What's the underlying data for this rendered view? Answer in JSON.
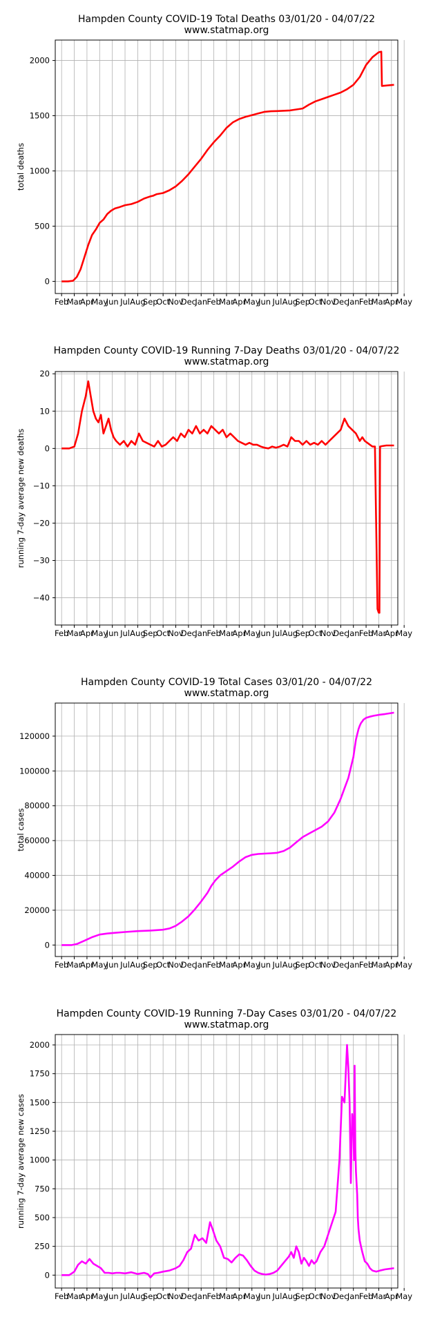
{
  "chart_data": [
    {
      "type": "line",
      "title": "Hampden County COVID-19 Total Deaths 03/01/20 - 04/07/22",
      "subtitle": "www.statmap.org",
      "xlabel": "",
      "ylabel": "total deaths",
      "color": "#ff0000",
      "grid": true,
      "x_tick_labels": [
        "Feb",
        "Mar",
        "Apr",
        "May",
        "Jun",
        "Jul",
        "Aug",
        "Sep",
        "Oct",
        "Nov",
        "Dec",
        "Jan",
        "Feb",
        "Mar",
        "Apr",
        "May",
        "Jun",
        "Jul",
        "Aug",
        "Sep",
        "Oct",
        "Nov",
        "Dec",
        "Jan",
        "Feb",
        "Mar",
        "Apr",
        "May"
      ],
      "y_ticks": [
        0,
        500,
        1000,
        1500,
        2000
      ],
      "y_tick_labels": [
        "0",
        "500",
        "1000",
        "1500",
        "2000"
      ],
      "ylim": [
        -110,
        2185
      ],
      "x_month_range": [
        -0.5,
        26.5
      ],
      "series": [
        {
          "x": [
            0,
            0.5,
            0.9,
            1.2,
            1.5,
            1.8,
            2.1,
            2.4,
            2.7,
            3.0,
            3.3,
            3.6,
            3.9,
            4.2,
            4.5,
            5.0,
            5.5,
            6.0,
            6.5,
            7.0,
            7.2,
            7.5,
            8.0,
            8.5,
            9.0,
            9.5,
            10.0,
            10.5,
            11.0,
            11.5,
            12.0,
            12.5,
            13.0,
            13.5,
            14.0,
            14.5,
            15.0,
            15.5,
            16.0,
            16.5,
            17.0,
            18.0,
            19.0,
            19.5,
            20.0,
            20.5,
            21.0,
            21.5,
            22.0,
            22.5,
            23.0,
            23.5,
            24.0,
            24.5,
            25.0,
            25.2,
            25.25,
            26.2
          ],
          "y": [
            0,
            0,
            5,
            40,
            110,
            220,
            330,
            420,
            470,
            530,
            560,
            610,
            640,
            660,
            670,
            690,
            700,
            720,
            750,
            770,
            775,
            790,
            800,
            825,
            860,
            910,
            970,
            1040,
            1110,
            1190,
            1260,
            1320,
            1390,
            1440,
            1470,
            1490,
            1505,
            1520,
            1535,
            1540,
            1542,
            1548,
            1565,
            1600,
            1630,
            1650,
            1670,
            1690,
            1710,
            1740,
            1780,
            1850,
            1960,
            2030,
            2075,
            2080,
            1770,
            1780
          ]
        }
      ]
    },
    {
      "type": "line",
      "title": "Hampden County COVID-19 Running 7-Day Deaths 03/01/20 - 04/07/22",
      "subtitle": "www.statmap.org",
      "xlabel": "",
      "ylabel": "running 7-day average new deaths",
      "color": "#ff0000",
      "grid": true,
      "x_tick_labels": [
        "Feb",
        "Mar",
        "Apr",
        "May",
        "Jun",
        "Jul",
        "Aug",
        "Sep",
        "Oct",
        "Nov",
        "Dec",
        "Jan",
        "Feb",
        "Mar",
        "Apr",
        "May",
        "Jun",
        "Jul",
        "Aug",
        "Sep",
        "Oct",
        "Nov",
        "Dec",
        "Jan",
        "Feb",
        "Mar",
        "Apr",
        "May"
      ],
      "y_ticks": [
        -40,
        -30,
        -20,
        -10,
        0,
        10,
        20
      ],
      "y_tick_labels": [
        "−40",
        "−30",
        "−20",
        "−10",
        "0",
        "10",
        "20"
      ],
      "ylim": [
        -47.3,
        20.6
      ],
      "x_month_range": [
        -0.5,
        26.5
      ],
      "series": [
        {
          "x": [
            0,
            0.6,
            1.0,
            1.3,
            1.6,
            1.9,
            2.1,
            2.3,
            2.5,
            2.7,
            2.9,
            3.1,
            3.3,
            3.5,
            3.7,
            3.9,
            4.1,
            4.3,
            4.6,
            4.9,
            5.2,
            5.5,
            5.8,
            6.1,
            6.4,
            6.7,
            7.0,
            7.3,
            7.6,
            7.9,
            8.2,
            8.5,
            8.8,
            9.1,
            9.4,
            9.7,
            10.0,
            10.3,
            10.6,
            10.9,
            11.2,
            11.5,
            11.8,
            12.1,
            12.4,
            12.7,
            13.0,
            13.3,
            13.6,
            13.9,
            14.2,
            14.5,
            14.8,
            15.1,
            15.4,
            15.7,
            16.0,
            16.3,
            16.6,
            16.9,
            17.2,
            17.5,
            17.8,
            18.1,
            18.4,
            18.7,
            19.0,
            19.3,
            19.6,
            19.9,
            20.2,
            20.5,
            20.8,
            21.1,
            21.4,
            21.7,
            22.0,
            22.3,
            22.6,
            22.9,
            23.2,
            23.5,
            23.7,
            23.9,
            24.1,
            24.3,
            24.5,
            24.7,
            24.9,
            25.0,
            25.05,
            25.1,
            25.15,
            25.2,
            25.6,
            26.2
          ],
          "y": [
            0,
            0,
            0.5,
            4,
            10,
            14,
            18,
            14,
            10,
            8,
            7,
            9,
            4,
            6,
            8,
            5,
            3,
            2,
            1,
            2,
            0.5,
            2,
            1,
            4,
            2,
            1.5,
            1,
            0.5,
            2,
            0.5,
            1,
            2,
            3,
            2,
            4,
            3,
            5,
            4,
            6,
            4,
            5,
            4,
            6,
            5,
            4,
            5,
            3,
            4,
            3,
            2,
            1.5,
            1,
            1.5,
            1,
            1,
            0.5,
            0.2,
            0,
            0.5,
            0.2,
            0.5,
            1,
            0.5,
            3,
            2,
            2,
            1,
            2,
            1,
            1.5,
            1,
            2,
            1,
            2,
            3,
            4,
            5,
            8,
            6,
            5,
            4,
            2,
            3,
            2,
            1.5,
            1,
            0.5,
            0.5,
            -43,
            -44,
            -44,
            0.5,
            0.5,
            0.6,
            0.8,
            0.8
          ]
        }
      ]
    },
    {
      "type": "line",
      "title": "Hampden County COVID-19 Total Cases 03/01/20 - 04/07/22",
      "subtitle": "www.statmap.org",
      "xlabel": "",
      "ylabel": "total cases",
      "color": "#ff00ff",
      "grid": true,
      "x_tick_labels": [
        "Feb",
        "Mar",
        "Apr",
        "May",
        "Jun",
        "Jul",
        "Aug",
        "Sep",
        "Oct",
        "Nov",
        "Dec",
        "Jan",
        "Feb",
        "Mar",
        "Apr",
        "May",
        "Jun",
        "Jul",
        "Aug",
        "Sep",
        "Oct",
        "Nov",
        "Dec",
        "Jan",
        "Feb",
        "Mar",
        "Apr",
        "May"
      ],
      "y_ticks": [
        0,
        20000,
        40000,
        60000,
        80000,
        100000,
        120000
      ],
      "y_tick_labels": [
        "0",
        "20000",
        "40000",
        "60000",
        "80000",
        "100000",
        "120000"
      ],
      "ylim": [
        -6600,
        139000
      ],
      "x_month_range": [
        -0.5,
        26.5
      ],
      "series": [
        {
          "x": [
            0,
            0.8,
            1.2,
            1.8,
            2.4,
            3.0,
            3.6,
            4.2,
            5.0,
            6.0,
            7.0,
            8.0,
            8.5,
            9.0,
            9.5,
            10.0,
            10.5,
            11.0,
            11.5,
            11.8,
            12.1,
            12.5,
            13.0,
            13.5,
            14.0,
            14.5,
            15.0,
            15.5,
            16.0,
            16.5,
            17.0,
            17.5,
            18.0,
            18.5,
            19.0,
            19.5,
            20.0,
            20.5,
            21.0,
            21.5,
            22.0,
            22.3,
            22.6,
            22.8,
            23.0,
            23.1,
            23.2,
            23.3,
            23.4,
            23.5,
            23.6,
            23.7,
            23.8,
            24.0,
            24.3,
            24.6,
            25.0,
            25.5,
            26.2
          ],
          "y": [
            0,
            0,
            600,
            2500,
            4500,
            6000,
            6600,
            7000,
            7500,
            8000,
            8300,
            8800,
            9500,
            11000,
            13500,
            16500,
            20500,
            25000,
            30000,
            34000,
            37000,
            40000,
            42500,
            45000,
            48000,
            50500,
            51800,
            52300,
            52500,
            52700,
            53000,
            54000,
            56000,
            59000,
            62000,
            64000,
            66000,
            68000,
            71000,
            76000,
            84000,
            90000,
            96000,
            102000,
            108000,
            113000,
            118000,
            121000,
            124000,
            126000,
            127500,
            128500,
            129500,
            130500,
            131200,
            131700,
            132200,
            132700,
            133500
          ]
        }
      ]
    },
    {
      "type": "line",
      "title": "Hampden County COVID-19 Running 7-Day Cases 03/01/20 - 04/07/22",
      "subtitle": "www.statmap.org",
      "xlabel": "",
      "ylabel": "running 7-day average new cases",
      "color": "#ff00ff",
      "grid": true,
      "x_tick_labels": [
        "Feb",
        "Mar",
        "Apr",
        "May",
        "Jun",
        "Jul",
        "Aug",
        "Sep",
        "Oct",
        "Nov",
        "Dec",
        "Jan",
        "Feb",
        "Mar",
        "Apr",
        "May",
        "Jun",
        "Jul",
        "Aug",
        "Sep",
        "Oct",
        "Nov",
        "Dec",
        "Jan",
        "Feb",
        "Mar",
        "Apr",
        "May"
      ],
      "y_ticks": [
        0,
        250,
        500,
        750,
        1000,
        1250,
        1500,
        1750,
        2000
      ],
      "y_tick_labels": [
        "0",
        "250",
        "500",
        "750",
        "1000",
        "1250",
        "1500",
        "1750",
        "2000"
      ],
      "ylim": [
        -112,
        2090
      ],
      "x_month_range": [
        -0.5,
        26.5
      ],
      "series": [
        {
          "x": [
            0,
            0.6,
            1.0,
            1.3,
            1.6,
            1.9,
            2.2,
            2.5,
            2.8,
            3.1,
            3.4,
            3.7,
            4.0,
            4.3,
            4.6,
            5.0,
            5.5,
            6.0,
            6.5,
            6.8,
            7.0,
            7.3,
            7.6,
            8.0,
            8.5,
            9.0,
            9.3,
            9.6,
            9.9,
            10.2,
            10.5,
            10.8,
            11.1,
            11.4,
            11.7,
            11.9,
            12.2,
            12.5,
            12.8,
            13.1,
            13.4,
            13.7,
            14.0,
            14.3,
            14.6,
            14.9,
            15.2,
            15.5,
            15.8,
            16.1,
            16.4,
            16.7,
            17.0,
            17.3,
            17.6,
            17.9,
            18.1,
            18.3,
            18.5,
            18.7,
            18.9,
            19.1,
            19.3,
            19.5,
            19.7,
            19.9,
            20.1,
            20.4,
            20.7,
            21.0,
            21.3,
            21.6,
            21.9,
            22.1,
            22.3,
            22.5,
            22.6,
            22.7,
            22.8,
            22.9,
            23.0,
            23.05,
            23.1,
            23.15,
            23.2,
            23.25,
            23.3,
            23.35,
            23.4,
            23.45,
            23.5,
            23.6,
            23.7,
            23.9,
            24.1,
            24.3,
            24.5,
            24.8,
            25.1,
            25.5,
            26.2
          ],
          "y": [
            0,
            0,
            30,
            90,
            120,
            100,
            140,
            100,
            80,
            60,
            20,
            20,
            15,
            20,
            20,
            15,
            25,
            10,
            20,
            10,
            -20,
            15,
            20,
            30,
            40,
            60,
            80,
            130,
            200,
            230,
            350,
            300,
            320,
            280,
            460,
            400,
            300,
            250,
            150,
            140,
            110,
            150,
            180,
            170,
            130,
            80,
            40,
            20,
            10,
            5,
            10,
            20,
            40,
            80,
            120,
            160,
            200,
            150,
            250,
            200,
            100,
            150,
            120,
            80,
            130,
            100,
            120,
            200,
            250,
            350,
            450,
            550,
            1000,
            1550,
            1500,
            2000,
            1800,
            1500,
            800,
            1400,
            1300,
            1000,
            1820,
            1100,
            900,
            800,
            700,
            500,
            400,
            350,
            300,
            250,
            200,
            120,
            100,
            60,
            40,
            30,
            40,
            50,
            60
          ]
        }
      ]
    }
  ]
}
